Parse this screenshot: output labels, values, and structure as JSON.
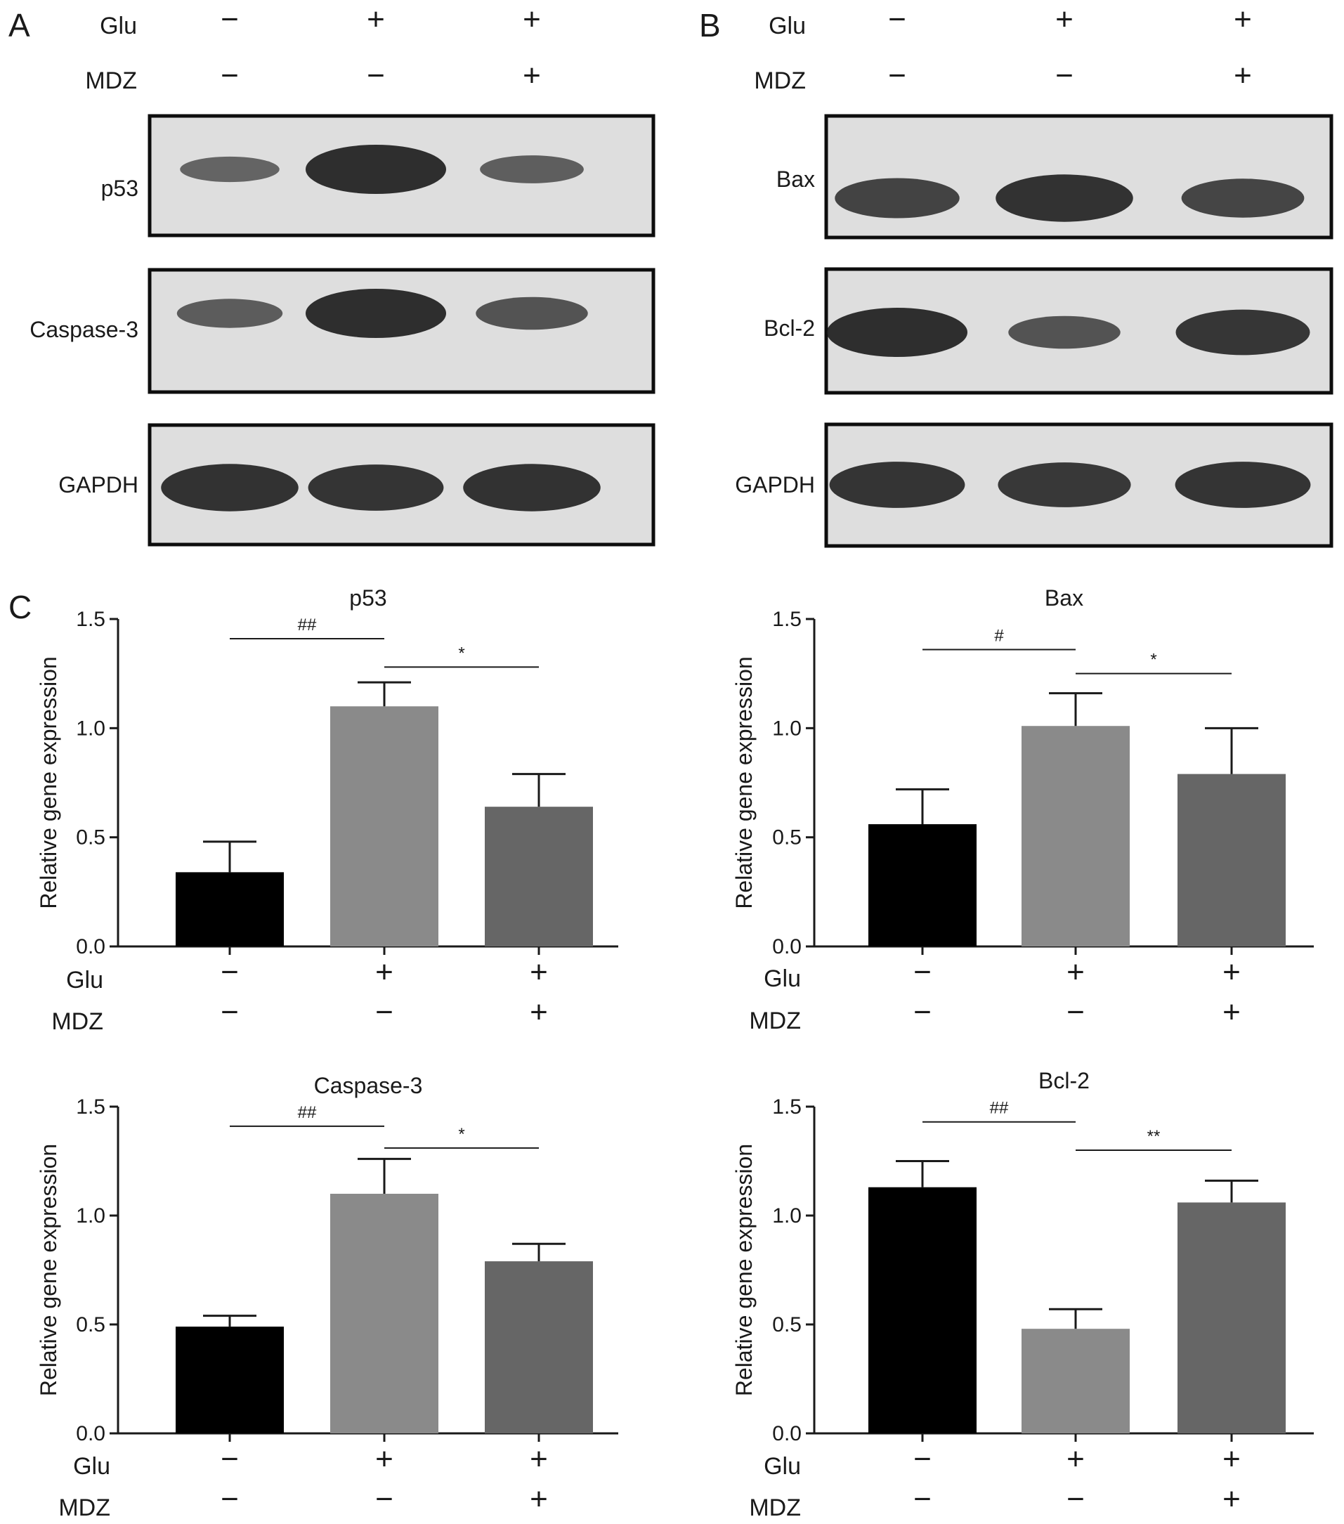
{
  "panels": {
    "a": "A",
    "b": "B",
    "c": "C"
  },
  "conditions": {
    "glu": "Glu",
    "mdz": "MDZ",
    "glu_signs": [
      "−",
      "+",
      "+"
    ],
    "mdz_signs": [
      "−",
      "−",
      "+"
    ]
  },
  "blots": {
    "a": [
      {
        "label": "p53",
        "intensities": [
          0.35,
          1.0,
          0.42
        ]
      },
      {
        "label": "Caspase-3",
        "intensities": [
          0.45,
          1.0,
          0.55
        ]
      },
      {
        "label": "GAPDH",
        "intensities": [
          0.95,
          0.92,
          0.95
        ]
      }
    ],
    "b": [
      {
        "label": "Bax",
        "intensities": [
          0.75,
          0.95,
          0.72
        ]
      },
      {
        "label": "Bcl-2",
        "intensities": [
          1.0,
          0.55,
          0.9
        ]
      },
      {
        "label": "GAPDH",
        "intensities": [
          0.92,
          0.88,
          0.92
        ]
      }
    ]
  },
  "chart_data": [
    {
      "type": "bar",
      "title": "p53",
      "ylabel": "Relative gene expression",
      "ylim": [
        0,
        1.5
      ],
      "yticks": [
        "0.0",
        "0.5",
        "1.0",
        "1.5"
      ],
      "values": [
        0.34,
        1.1,
        0.64
      ],
      "errors": [
        0.14,
        0.11,
        0.15
      ],
      "bar_colors": [
        "#000000",
        "#8a8a8a",
        "#666666"
      ],
      "comparisons": [
        {
          "from": 0,
          "to": 1,
          "label": "##",
          "y": 1.41
        },
        {
          "from": 1,
          "to": 2,
          "label": "*",
          "y": 1.28
        }
      ]
    },
    {
      "type": "bar",
      "title": "Bax",
      "ylabel": "Relative gene expression",
      "ylim": [
        0,
        1.5
      ],
      "yticks": [
        "0.0",
        "0.5",
        "1.0",
        "1.5"
      ],
      "values": [
        0.56,
        1.01,
        0.79
      ],
      "errors": [
        0.16,
        0.15,
        0.21
      ],
      "bar_colors": [
        "#000000",
        "#8a8a8a",
        "#666666"
      ],
      "comparisons": [
        {
          "from": 0,
          "to": 1,
          "label": "#",
          "y": 1.36
        },
        {
          "from": 1,
          "to": 2,
          "label": "*",
          "y": 1.25
        }
      ]
    },
    {
      "type": "bar",
      "title": "Caspase-3",
      "ylabel": "Relative gene expression",
      "ylim": [
        0,
        1.5
      ],
      "yticks": [
        "0.0",
        "0.5",
        "1.0",
        "1.5"
      ],
      "values": [
        0.49,
        1.1,
        0.79
      ],
      "errors": [
        0.05,
        0.16,
        0.08
      ],
      "bar_colors": [
        "#000000",
        "#8a8a8a",
        "#666666"
      ],
      "comparisons": [
        {
          "from": 0,
          "to": 1,
          "label": "##",
          "y": 1.41
        },
        {
          "from": 1,
          "to": 2,
          "label": "*",
          "y": 1.31
        }
      ]
    },
    {
      "type": "bar",
      "title": "Bcl-2",
      "ylabel": "Relative gene expression",
      "ylim": [
        0,
        1.5
      ],
      "yticks": [
        "0.0",
        "0.5",
        "1.0",
        "1.5"
      ],
      "values": [
        1.13,
        0.48,
        1.06
      ],
      "errors": [
        0.12,
        0.09,
        0.1
      ],
      "bar_colors": [
        "#000000",
        "#8a8a8a",
        "#666666"
      ],
      "comparisons": [
        {
          "from": 0,
          "to": 1,
          "label": "##",
          "y": 1.43
        },
        {
          "from": 1,
          "to": 2,
          "label": "**",
          "y": 1.3
        }
      ]
    }
  ]
}
